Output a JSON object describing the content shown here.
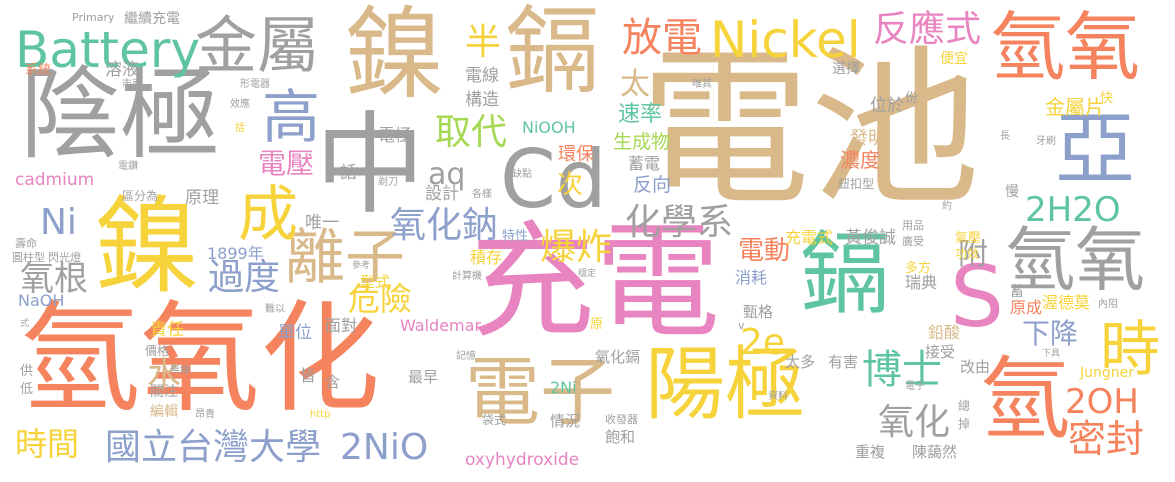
{
  "palette": {
    "tan": "#d9b98a",
    "gray": "#a0a0a0",
    "coral": "#f4835e",
    "pink": "#e884c0",
    "yellow": "#f6d33a",
    "green": "#5fc5a0",
    "blue": "#8da0cb",
    "lime": "#a6d854"
  },
  "words": [
    {
      "text": "電池",
      "color": "#d9b98a"
    },
    {
      "text": "充電",
      "color": "#e884c0"
    },
    {
      "text": "氫氧化",
      "color": "#f4835e"
    },
    {
      "text": "鎳",
      "color": "#d9b98a"
    },
    {
      "text": "鎘",
      "color": "#d9b98a"
    },
    {
      "text": "陰極",
      "color": "#a0a0a0"
    },
    {
      "text": "中",
      "color": "#a0a0a0"
    },
    {
      "text": "Cd",
      "color": "#a0a0a0"
    },
    {
      "text": "鎳",
      "color": "#f6d33a"
    },
    {
      "text": "鎘",
      "color": "#5fc5a0"
    },
    {
      "text": "陽極",
      "color": "#f6d33a"
    },
    {
      "text": "電子",
      "color": "#d9b98a"
    },
    {
      "text": "氫氧",
      "color": "#f4835e"
    },
    {
      "text": "氫氧",
      "color": "#a0a0a0"
    },
    {
      "text": "氫",
      "color": "#f4835e"
    },
    {
      "text": "S",
      "color": "#e884c0"
    },
    {
      "text": "亞",
      "color": "#8da0cb"
    },
    {
      "text": "時",
      "color": "#f6d33a"
    },
    {
      "text": "金屬",
      "color": "#a0a0a0"
    },
    {
      "text": "Battery",
      "color": "#5fc5a0"
    },
    {
      "text": "Nickel",
      "color": "#f6d33a"
    },
    {
      "text": "放電",
      "color": "#f4835e"
    },
    {
      "text": "反應式",
      "color": "#e884c0"
    },
    {
      "text": "離子",
      "color": "#d9b98a"
    },
    {
      "text": "成",
      "color": "#f6d33a"
    },
    {
      "text": "高",
      "color": "#8da0cb"
    },
    {
      "text": "2H2O",
      "color": "#5fc5a0"
    },
    {
      "text": "2OH",
      "color": "#f4835e"
    },
    {
      "text": "2NiO",
      "color": "#8da0cb"
    },
    {
      "text": "國立台灣大學",
      "color": "#8da0cb"
    },
    {
      "text": "博士",
      "color": "#5fc5a0"
    },
    {
      "text": "密封",
      "color": "#f4835e"
    },
    {
      "text": "下降",
      "color": "#8da0cb"
    },
    {
      "text": "氧化鈉",
      "color": "#8da0cb"
    },
    {
      "text": "化學系",
      "color": "#a0a0a0"
    },
    {
      "text": "爆炸",
      "color": "#f6d33a"
    },
    {
      "text": "取代",
      "color": "#a6d854"
    },
    {
      "text": "aq",
      "color": "#a0a0a0"
    },
    {
      "text": "過度",
      "color": "#8da0cb"
    },
    {
      "text": "氧根",
      "color": "#a0a0a0"
    },
    {
      "text": "危險",
      "color": "#f6d33a"
    },
    {
      "text": "2e",
      "color": "#f6d33a"
    },
    {
      "text": "氧化",
      "color": "#a0a0a0"
    },
    {
      "text": "時間",
      "color": "#f6d33a"
    },
    {
      "text": "半",
      "color": "#f6d33a"
    },
    {
      "text": "太",
      "color": "#d9b98a"
    },
    {
      "text": "Ni",
      "color": "#8da0cb"
    },
    {
      "text": "水",
      "color": "#d9b98a"
    },
    {
      "text": "電壓",
      "color": "#e884c0"
    },
    {
      "text": "附",
      "color": "#a0a0a0"
    },
    {
      "text": "電動",
      "color": "#f4835e"
    },
    {
      "text": "次",
      "color": "#f6d33a"
    },
    {
      "text": "oxyhydroxide",
      "color": "#e884c0"
    },
    {
      "text": "cadmium",
      "color": "#e884c0"
    },
    {
      "text": "Waldemar",
      "color": "#e884c0"
    },
    {
      "text": "Jungner",
      "color": "#f6d33a"
    },
    {
      "text": "NiOOH",
      "color": "#5fc5a0"
    },
    {
      "text": "1899年",
      "color": "#8da0cb"
    },
    {
      "text": "NaOH",
      "color": "#8da0cb"
    },
    {
      "text": "2Ni",
      "color": "#5fc5a0"
    },
    {
      "text": "速率",
      "color": "#5fc5a0"
    },
    {
      "text": "生成物",
      "color": "#a6d854"
    },
    {
      "text": "反向",
      "color": "#8da0cb"
    },
    {
      "text": "蓄電",
      "color": "#a0a0a0"
    },
    {
      "text": "環保",
      "color": "#f4835e"
    },
    {
      "text": "濃度",
      "color": "#f4835e"
    },
    {
      "text": "發明",
      "color": "#d9b98a"
    },
    {
      "text": "金屬片",
      "color": "#f6d33a"
    },
    {
      "text": "位於",
      "color": "#a0a0a0"
    },
    {
      "text": "構造",
      "color": "#a0a0a0"
    },
    {
      "text": "電線",
      "color": "#a0a0a0"
    },
    {
      "text": "溶液",
      "color": "#a0a0a0"
    },
    {
      "text": "電極",
      "color": "#a0a0a0"
    },
    {
      "text": "設計",
      "color": "#a0a0a0"
    },
    {
      "text": "原理",
      "color": "#a0a0a0"
    },
    {
      "text": "唯一",
      "color": "#a0a0a0"
    },
    {
      "text": "話",
      "color": "#a0a0a0"
    },
    {
      "text": "積存",
      "color": "#f6d33a"
    },
    {
      "text": "特性",
      "color": "#8da0cb"
    },
    {
      "text": "責任",
      "color": "#f6d33a"
    },
    {
      "text": "單位",
      "color": "#8da0cb"
    },
    {
      "text": "面對",
      "color": "#a0a0a0"
    },
    {
      "text": "型式",
      "color": "#f6d33a"
    },
    {
      "text": "充電式",
      "color": "#f6d33a"
    },
    {
      "text": "黃俊誠",
      "color": "#a0a0a0"
    },
    {
      "text": "消耗",
      "color": "#8da0cb"
    },
    {
      "text": "瑞典",
      "color": "#a0a0a0"
    },
    {
      "text": "原成",
      "color": "#f4835e"
    },
    {
      "text": "渥德莫",
      "color": "#f6d33a"
    },
    {
      "text": "鉛酸",
      "color": "#d9b98a"
    },
    {
      "text": "甄格",
      "color": "#a0a0a0"
    },
    {
      "text": "接受",
      "color": "#a0a0a0"
    },
    {
      "text": "太多",
      "color": "#a0a0a0"
    },
    {
      "text": "有害",
      "color": "#a0a0a0"
    },
    {
      "text": "改由",
      "color": "#a0a0a0"
    },
    {
      "text": "氧化鎘",
      "color": "#a0a0a0"
    },
    {
      "text": "重複",
      "color": "#a0a0a0"
    },
    {
      "text": "陳藹然",
      "color": "#a0a0a0"
    },
    {
      "text": "飽和",
      "color": "#a0a0a0"
    },
    {
      "text": "情況",
      "color": "#a0a0a0"
    },
    {
      "text": "編輯",
      "color": "#d9b98a"
    },
    {
      "text": "關注",
      "color": "#a0a0a0"
    },
    {
      "text": "最早",
      "color": "#a0a0a0"
    },
    {
      "text": "皆",
      "color": "#a0a0a0"
    },
    {
      "text": "含",
      "color": "#a0a0a0"
    },
    {
      "text": "價格",
      "color": "#a0a0a0"
    },
    {
      "text": "繼續充電",
      "color": "#a0a0a0"
    },
    {
      "text": "Primary",
      "color": "#a0a0a0"
    },
    {
      "text": "系統",
      "color": "#f4835e"
    },
    {
      "text": "選擇",
      "color": "#a0a0a0"
    },
    {
      "text": "便宜",
      "color": "#f6d33a"
    },
    {
      "text": "份",
      "color": "#a0a0a0"
    },
    {
      "text": "快",
      "color": "#f6d33a"
    },
    {
      "text": "慢",
      "color": "#a0a0a0"
    },
    {
      "text": "蓄",
      "color": "#a0a0a0"
    },
    {
      "text": "氣壓",
      "color": "#f6d33a"
    },
    {
      "text": "多方",
      "color": "#f6d33a"
    },
    {
      "text": "功效",
      "color": "#f6d33a"
    },
    {
      "text": "鈕扣型",
      "color": "#a0a0a0"
    },
    {
      "text": "廣受",
      "color": "#a0a0a0"
    },
    {
      "text": "用品",
      "color": "#a0a0a0"
    },
    {
      "text": "低",
      "color": "#a0a0a0"
    },
    {
      "text": "供",
      "color": "#a0a0a0"
    },
    {
      "text": "壽命",
      "color": "#a0a0a0"
    },
    {
      "text": "圓柱型",
      "color": "#a0a0a0"
    },
    {
      "text": "閃光燈",
      "color": "#a0a0a0"
    },
    {
      "text": "區分為",
      "color": "#a0a0a0"
    },
    {
      "text": "電鑽",
      "color": "#a0a0a0"
    },
    {
      "text": "收發器",
      "color": "#a0a0a0"
    },
    {
      "text": "資料",
      "color": "#a0a0a0"
    },
    {
      "text": "記憶",
      "color": "#a0a0a0"
    },
    {
      "text": "袋式",
      "color": "#a0a0a0"
    },
    {
      "text": "計算機",
      "color": "#a0a0a0"
    },
    {
      "text": "參考",
      "color": "#a0a0a0"
    },
    {
      "text": "各樣",
      "color": "#a0a0a0"
    },
    {
      "text": "缺點",
      "color": "#a0a0a0"
    },
    {
      "text": "形電器",
      "color": "#a0a0a0"
    },
    {
      "text": "唯其",
      "color": "#a0a0a0"
    },
    {
      "text": "市面",
      "color": "#a0a0a0"
    },
    {
      "text": "效應",
      "color": "#a0a0a0"
    },
    {
      "text": "括",
      "color": "#f6d33a"
    },
    {
      "text": "剃刀",
      "color": "#a0a0a0"
    },
    {
      "text": "難以",
      "color": "#a0a0a0"
    },
    {
      "text": "無線",
      "color": "#a0a0a0"
    },
    {
      "text": "昂貴",
      "color": "#a0a0a0"
    },
    {
      "text": "電子",
      "color": "#a0a0a0"
    },
    {
      "text": "總",
      "color": "#a0a0a0"
    },
    {
      "text": "掉",
      "color": "#a0a0a0"
    },
    {
      "text": "牙刷",
      "color": "#a0a0a0"
    },
    {
      "text": "長",
      "color": "#a0a0a0"
    },
    {
      "text": "約",
      "color": "#a0a0a0"
    },
    {
      "text": "內阻",
      "color": "#a0a0a0"
    },
    {
      "text": "穩定",
      "color": "#a0a0a0"
    },
    {
      "text": "原",
      "color": "#f6d33a"
    },
    {
      "text": "式",
      "color": "#a0a0a0"
    },
    {
      "text": "http",
      "color": "#f6d33a"
    },
    {
      "text": "下具",
      "color": "#a0a0a0"
    },
    {
      "text": "v",
      "color": "#a0a0a0"
    }
  ]
}
